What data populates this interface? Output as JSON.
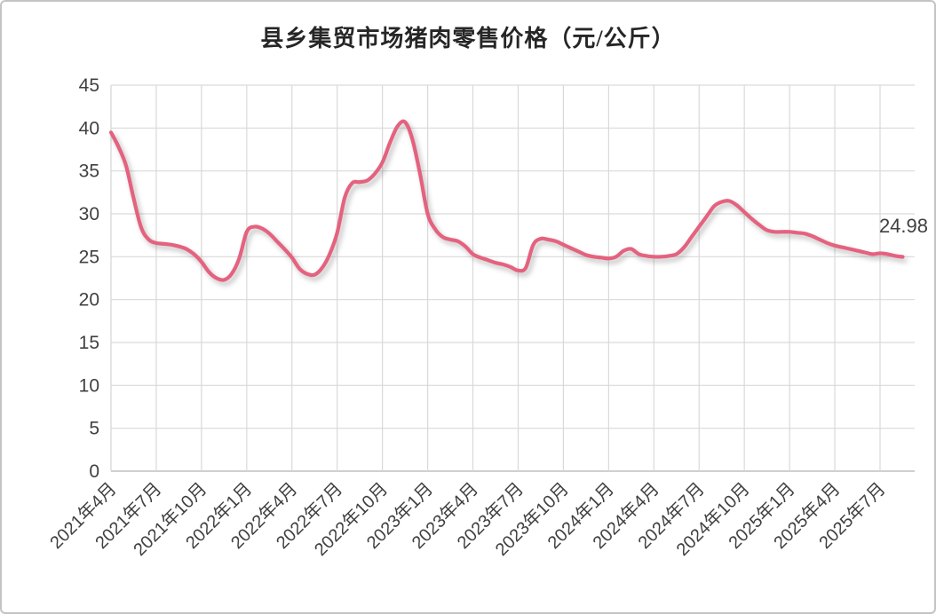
{
  "title": "县乡集贸市场猪肉零售价格（元/公斤）",
  "colors": {
    "line": "#e5627f",
    "grid": "#d9d9d9",
    "axis": "#bfbfbf",
    "tick_text": "#404040",
    "title_text": "#262626",
    "frame_border": "#c4c4c4",
    "background": "#ffffff"
  },
  "chart_data": {
    "type": "line",
    "title": "县乡集贸市场猪肉零售价格（元/公斤）",
    "xlabel": "",
    "ylabel": "",
    "ylim": [
      0,
      45
    ],
    "y_ticks": [
      0,
      5,
      10,
      15,
      20,
      25,
      30,
      35,
      40,
      45
    ],
    "grid": true,
    "legend_position": "none",
    "x_tick_labels": [
      "2021年4月",
      "2021年7月",
      "2021年10月",
      "2022年1月",
      "2022年4月",
      "2022年7月",
      "2022年10月",
      "2023年1月",
      "2023年4月",
      "2023年7月",
      "2023年10月",
      "2024年1月",
      "2024年4月",
      "2024年7月",
      "2024年10月",
      "2025年1月",
      "2025年4月",
      "2025年7月"
    ],
    "x_start": "2021年4月",
    "x_end": "2025年8月",
    "points_per_month": 2,
    "end_annotation": "24.98",
    "series": [
      {
        "name": "县乡集贸市场猪肉零售价格",
        "color": "#e5627f",
        "values": [
          39.5,
          37.8,
          35.6,
          31.8,
          28.4,
          27.0,
          26.6,
          26.5,
          26.4,
          26.2,
          25.9,
          25.3,
          24.4,
          23.2,
          22.5,
          22.3,
          23.0,
          24.8,
          27.9,
          28.5,
          28.3,
          27.7,
          26.8,
          25.9,
          24.9,
          23.6,
          23.0,
          22.9,
          23.7,
          25.3,
          27.8,
          31.9,
          33.6,
          33.7,
          33.9,
          34.7,
          36.0,
          38.3,
          40.2,
          40.7,
          38.6,
          34.6,
          30.0,
          28.2,
          27.3,
          27.0,
          26.8,
          26.2,
          25.3,
          24.9,
          24.6,
          24.3,
          24.1,
          23.8,
          23.4,
          23.7,
          26.4,
          27.1,
          27.0,
          26.8,
          26.4,
          26.0,
          25.6,
          25.2,
          25.0,
          24.9,
          24.8,
          25.0,
          25.7,
          25.9,
          25.3,
          25.1,
          25.0,
          25.0,
          25.1,
          25.3,
          26.1,
          27.3,
          28.5,
          29.7,
          30.9,
          31.4,
          31.5,
          31.0,
          30.2,
          29.4,
          28.7,
          28.1,
          27.9,
          27.9,
          27.9,
          27.8,
          27.7,
          27.4,
          27.0,
          26.6,
          26.3,
          26.1,
          25.9,
          25.7,
          25.5,
          25.3,
          25.4,
          25.3,
          25.1,
          24.98
        ]
      }
    ]
  }
}
